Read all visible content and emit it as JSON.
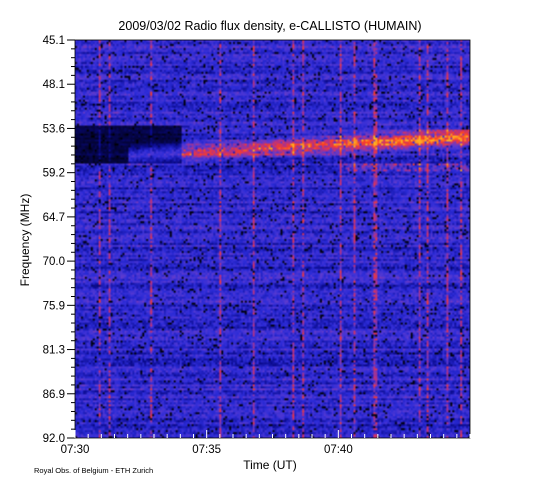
{
  "chart_data": {
    "type": "heatmap",
    "title": "2009/03/02  Radio flux density, e-CALLISTO (HUMAIN)",
    "xlabel": "Time (UT)",
    "ylabel": "Frequency (MHz)",
    "x_ticks": [
      "07:30",
      "07:35",
      "07:40"
    ],
    "x_tick_minutes": [
      0,
      5,
      10
    ],
    "x_range_minutes": [
      0,
      15
    ],
    "y_ticks": [
      "45.1",
      "48.1",
      "53.6",
      "59.2",
      "64.7",
      "70.0",
      "75.9",
      "81.3",
      "86.9",
      "92.0"
    ],
    "ylim": [
      45.1,
      92.0
    ],
    "y_inverted": true,
    "colormap": [
      "#000000",
      "#0a0a8c",
      "#2b2bd8",
      "#5b3bd0",
      "#c0307a",
      "#ff4020",
      "#ffb020"
    ],
    "features": {
      "burst": {
        "start_min": 2.0,
        "end_min": 15.0,
        "freq_low": 55.5,
        "freq_high": 60.0
      },
      "dark_band": {
        "start_min": 0.0,
        "end_min": 4.0,
        "freq_low": 55.0,
        "freq_high": 59.5
      }
    },
    "credit": "Royal Obs. of Belgium - ETH Zurich"
  }
}
